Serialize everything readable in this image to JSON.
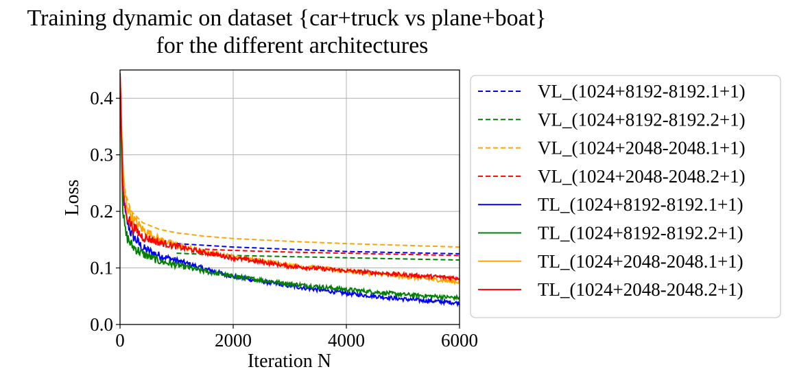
{
  "chart_data": {
    "type": "line",
    "title_lines": [
      "Training dynamic on dataset {car+truck vs plane+boat}",
      "for the different architectures"
    ],
    "xlabel": "Iteration N",
    "ylabel": "Loss",
    "xlim": [
      0,
      6000
    ],
    "ylim": [
      0,
      0.45
    ],
    "xticks": [
      0,
      2000,
      4000,
      6000
    ],
    "xtick_labels": [
      "0",
      "2000",
      "4000",
      "6000"
    ],
    "yticks": [
      0.0,
      0.1,
      0.2,
      0.3,
      0.4
    ],
    "ytick_labels": [
      "0.0",
      "0.1",
      "0.2",
      "0.3",
      "0.4"
    ],
    "grid": true,
    "legend_placement": "outside-right",
    "series": [
      {
        "name": "VL_(1024+8192-8192.1+1)",
        "color": "#0000ff",
        "style": "dashed",
        "x": [
          1000,
          1500,
          2000,
          3000,
          4000,
          5000,
          6000
        ],
        "y": [
          0.143,
          0.14,
          0.137,
          0.133,
          0.129,
          0.127,
          0.125
        ]
      },
      {
        "name": "VL_(1024+8192-8192.2+1)",
        "color": "#008000",
        "style": "dashed",
        "x": [
          1000,
          1500,
          2000,
          3000,
          4000,
          5000,
          6000
        ],
        "y": [
          0.126,
          0.124,
          0.122,
          0.12,
          0.118,
          0.116,
          0.114
        ]
      },
      {
        "name": "VL_(1024+2048-2048.1+1)",
        "color": "#ffa500",
        "style": "dashed",
        "x": [
          0,
          50,
          100,
          200,
          400,
          700,
          1000,
          1500,
          2000,
          3000,
          4000,
          5000,
          6000
        ],
        "y": [
          0.4,
          0.27,
          0.23,
          0.2,
          0.18,
          0.168,
          0.162,
          0.156,
          0.152,
          0.147,
          0.143,
          0.14,
          0.137
        ]
      },
      {
        "name": "VL_(1024+2048-2048.2+1)",
        "color": "#ff0000",
        "style": "dashed",
        "x": [
          1500,
          2000,
          3000,
          4000,
          5000,
          6000
        ],
        "y": [
          0.133,
          0.131,
          0.128,
          0.126,
          0.124,
          0.122
        ]
      },
      {
        "name": "TL_(1024+8192-8192.1+1)",
        "color": "#0000ff",
        "style": "solid",
        "x": [
          0,
          50,
          100,
          200,
          400,
          700,
          1000,
          1500,
          2000,
          3000,
          4000,
          5000,
          6000
        ],
        "y": [
          0.44,
          0.24,
          0.19,
          0.16,
          0.135,
          0.122,
          0.113,
          0.098,
          0.085,
          0.068,
          0.055,
          0.045,
          0.038
        ]
      },
      {
        "name": "TL_(1024+8192-8192.2+1)",
        "color": "#008000",
        "style": "solid",
        "x": [
          0,
          50,
          100,
          200,
          400,
          700,
          1000,
          1500,
          2000,
          3000,
          4000,
          5000,
          6000
        ],
        "y": [
          0.44,
          0.2,
          0.16,
          0.14,
          0.125,
          0.112,
          0.105,
          0.094,
          0.085,
          0.072,
          0.062,
          0.053,
          0.047
        ]
      },
      {
        "name": "TL_(1024+2048-2048.1+1)",
        "color": "#ffa500",
        "style": "solid",
        "x": [
          0,
          50,
          100,
          200,
          400,
          700,
          1000,
          1500,
          2000,
          3000,
          4000,
          5000,
          6000
        ],
        "y": [
          0.44,
          0.27,
          0.22,
          0.19,
          0.168,
          0.15,
          0.14,
          0.128,
          0.12,
          0.105,
          0.095,
          0.085,
          0.075
        ]
      },
      {
        "name": "TL_(1024+2048-2048.2+1)",
        "color": "#ff0000",
        "style": "solid",
        "x": [
          0,
          50,
          100,
          200,
          400,
          700,
          1000,
          1500,
          2000,
          3000,
          4000,
          5000,
          6000
        ],
        "y": [
          0.44,
          0.24,
          0.2,
          0.175,
          0.155,
          0.145,
          0.138,
          0.127,
          0.118,
          0.103,
          0.095,
          0.088,
          0.082
        ]
      }
    ]
  }
}
